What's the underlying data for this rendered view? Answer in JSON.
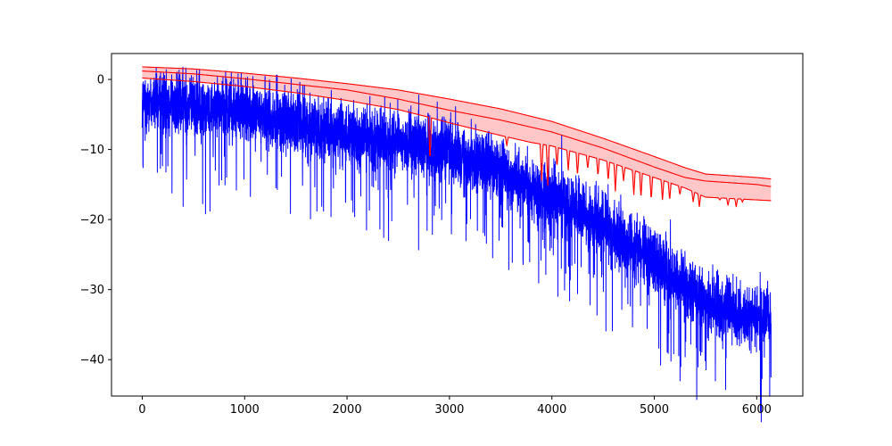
{
  "chart_data": {
    "type": "line",
    "title": "",
    "xlabel": "",
    "ylabel": "",
    "xlim": [
      -300,
      6450
    ],
    "ylim": [
      -45.2,
      3.7
    ],
    "grid": false,
    "legend": "none",
    "x_ticks": [
      0,
      1000,
      2000,
      3000,
      4000,
      5000,
      6000
    ],
    "y_ticks": [
      0,
      -10,
      -20,
      -30,
      -40
    ],
    "x_tick_labels": [
      "0",
      "1000",
      "2000",
      "3000",
      "4000",
      "5000",
      "6000"
    ],
    "y_tick_labels": [
      "0",
      "−10",
      "−20",
      "−30",
      "−40"
    ],
    "series": [
      {
        "color": "#0000ff",
        "style": "noisy line",
        "n_points": 6144,
        "x_range": [
          0,
          6140
        ],
        "trend": [
          {
            "x": 0,
            "y": -3
          },
          {
            "x": 1000,
            "y": -4.5
          },
          {
            "x": 2000,
            "y": -8
          },
          {
            "x": 3000,
            "y": -10
          },
          {
            "x": 3500,
            "y": -13
          },
          {
            "x": 4000,
            "y": -17
          },
          {
            "x": 4500,
            "y": -21
          },
          {
            "x": 5000,
            "y": -26
          },
          {
            "x": 5500,
            "y": -32
          },
          {
            "x": 6000,
            "y": -34
          },
          {
            "x": 6140,
            "y": -34
          }
        ]
      },
      {
        "color": "#ff0000",
        "style": "upper envelope",
        "points": [
          {
            "x": 0,
            "y": 1.8
          },
          {
            "x": 500,
            "y": 1.5
          },
          {
            "x": 1000,
            "y": 0.9
          },
          {
            "x": 1500,
            "y": 0.2
          },
          {
            "x": 2000,
            "y": -0.6
          },
          {
            "x": 2500,
            "y": -1.5
          },
          {
            "x": 3000,
            "y": -2.8
          },
          {
            "x": 3500,
            "y": -4.2
          },
          {
            "x": 4000,
            "y": -6.0
          },
          {
            "x": 4500,
            "y": -8.4
          },
          {
            "x": 5000,
            "y": -11.0
          },
          {
            "x": 5300,
            "y": -12.6
          },
          {
            "x": 5500,
            "y": -13.5
          },
          {
            "x": 6000,
            "y": -14.0
          },
          {
            "x": 6140,
            "y": -14.2
          }
        ]
      },
      {
        "color": "#ff0000",
        "style": "middle envelope",
        "points": [
          {
            "x": 0,
            "y": 1.2
          },
          {
            "x": 500,
            "y": 0.8
          },
          {
            "x": 1000,
            "y": 0.1
          },
          {
            "x": 1500,
            "y": -0.7
          },
          {
            "x": 2000,
            "y": -1.5
          },
          {
            "x": 2500,
            "y": -2.8
          },
          {
            "x": 3000,
            "y": -4.4
          },
          {
            "x": 3500,
            "y": -5.8
          },
          {
            "x": 4000,
            "y": -7.5
          },
          {
            "x": 4500,
            "y": -9.8
          },
          {
            "x": 5000,
            "y": -12.5
          },
          {
            "x": 5300,
            "y": -14.0
          },
          {
            "x": 5500,
            "y": -14.5
          },
          {
            "x": 6000,
            "y": -15.0
          },
          {
            "x": 6140,
            "y": -15.3
          }
        ]
      },
      {
        "color": "#ff0000",
        "style": "lower envelope with dips",
        "points": [
          {
            "x": 0,
            "y": 0.2
          },
          {
            "x": 500,
            "y": -0.3
          },
          {
            "x": 1000,
            "y": -1.0
          },
          {
            "x": 1500,
            "y": -1.9
          },
          {
            "x": 2000,
            "y": -3.0
          },
          {
            "x": 2500,
            "y": -4.3
          },
          {
            "x": 2800,
            "y": -5.4
          },
          {
            "x": 3000,
            "y": -6.2
          },
          {
            "x": 3500,
            "y": -8.0
          },
          {
            "x": 3800,
            "y": -9.0
          },
          {
            "x": 4000,
            "y": -9.5
          },
          {
            "x": 4500,
            "y": -11.5
          },
          {
            "x": 5000,
            "y": -14.0
          },
          {
            "x": 5300,
            "y": -15.5
          },
          {
            "x": 5500,
            "y": -16.8
          },
          {
            "x": 6000,
            "y": -17.2
          },
          {
            "x": 6140,
            "y": -17.3
          }
        ],
        "dips": [
          {
            "x": 2810,
            "y": -11.8
          },
          {
            "x": 3560,
            "y": -9.5
          },
          {
            "x": 3900,
            "y": -14.5
          },
          {
            "x": 3960,
            "y": -15.2
          },
          {
            "x": 4050,
            "y": -12.5
          },
          {
            "x": 4160,
            "y": -13.0
          },
          {
            "x": 4250,
            "y": -13.8
          },
          {
            "x": 4350,
            "y": -12.8
          },
          {
            "x": 4450,
            "y": -13.8
          },
          {
            "x": 4550,
            "y": -14.5
          },
          {
            "x": 4620,
            "y": -16.0
          },
          {
            "x": 4700,
            "y": -14.5
          },
          {
            "x": 4800,
            "y": -16.5
          },
          {
            "x": 4870,
            "y": -17.0
          },
          {
            "x": 4970,
            "y": -17.2
          },
          {
            "x": 5080,
            "y": -17.2
          },
          {
            "x": 5150,
            "y": -17.3
          },
          {
            "x": 5250,
            "y": -16.5
          },
          {
            "x": 5380,
            "y": -17.5
          },
          {
            "x": 5440,
            "y": -18.2
          },
          {
            "x": 5640,
            "y": -17.2
          },
          {
            "x": 5720,
            "y": -18.0
          },
          {
            "x": 5800,
            "y": -18.2
          },
          {
            "x": 5860,
            "y": -17.5
          }
        ]
      }
    ],
    "band": {
      "color": "#ff0000",
      "opacity": 0.22,
      "between": "upper envelope and lower envelope",
      "x_range": [
        0,
        6140
      ]
    }
  }
}
